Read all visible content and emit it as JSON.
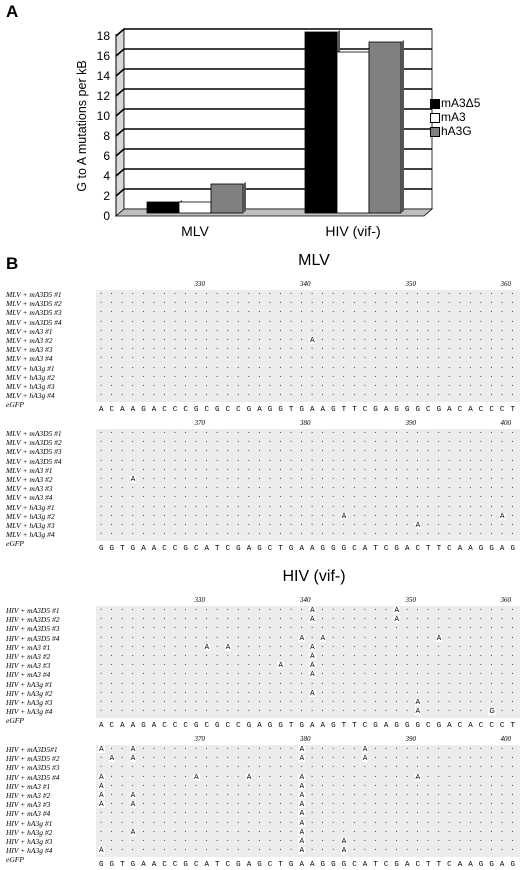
{
  "panel_a": "A",
  "panel_b": "B",
  "chart_data": {
    "type": "bar",
    "ylabel": "G to A mutations per kB",
    "ylim": [
      0,
      18
    ],
    "yticks": [
      0,
      2,
      4,
      6,
      8,
      10,
      12,
      14,
      16,
      18
    ],
    "categories": [
      "MLV",
      "HIV (vif-)"
    ],
    "series": [
      {
        "name": "mA3Δ5",
        "values": [
          1,
          18
        ],
        "color": "#000000"
      },
      {
        "name": "mA3",
        "values": [
          1,
          16
        ],
        "color": "#ffffff"
      },
      {
        "name": "hA3G",
        "values": [
          2.8,
          17
        ],
        "color": "#808080"
      }
    ],
    "grid": true,
    "legend": "right"
  },
  "alignment": {
    "mlv_title": "MLV",
    "hiv_title": "HIV (vif-)",
    "blocks": [
      {
        "ticks": [
          "330",
          "340",
          "350",
          "360"
        ],
        "rows": [
          "MLV + mA3D5 #1",
          "MLV + mA3D5 #2",
          "MLV + mA3D5 #3",
          "MLV + mA3D5 #4",
          "MLV + mA3 #1",
          "MLV + mA3 #2",
          "MLV + mA3 #3",
          "MLV + mA3 #4",
          "MLV + hA3g #1",
          "MLV + hA3g #2",
          "MLV + hA3g #3",
          "MLV + hA3g #4"
        ],
        "ref_label": "eGFP",
        "sequence": "ACAAGACCCGCGCCGAGGTGAAGTTCGAGGGCGACACCCT",
        "mutations": [
          [
            5,
            20,
            "A"
          ]
        ]
      },
      {
        "ticks": [
          "370",
          "380",
          "390",
          "400"
        ],
        "rows": [
          "MLV + mA3D5 #1",
          "MLV + mA3D5 #2",
          "MLV + mA3D5 #3",
          "MLV + mA3D5 #4",
          "MLV + mA3 #1",
          "MLV + mA3 #2",
          "MLV + mA3 #3",
          "MLV + mA3 #4",
          "MLV + hA3g #1",
          "MLV + hA3g #2",
          "MLV + hA3g #3",
          "MLV + hA3g #4"
        ],
        "ref_label": "eGFP",
        "sequence": "GGTGAACCGCATCGAGCTGAAGGGCATCGACTTCAAGGAG",
        "mutations": [
          [
            5,
            3,
            "A"
          ],
          [
            9,
            23,
            "A"
          ],
          [
            9,
            38,
            "A"
          ],
          [
            10,
            30,
            "A"
          ]
        ]
      },
      {
        "ticks": [
          "330",
          "340",
          "350",
          "360"
        ],
        "rows": [
          "HIV + mA3D5 #1",
          "HIV + mA3D5 #2",
          "HIV + mA3D5 #3",
          "HIV + mA3D5 #4",
          "HIV + mA3 #1",
          "HIV + mA3 #2",
          "HIV + mA3 #3",
          "HIV + mA3 #4",
          "HIV + hA3g #1",
          "HIV + hA3g #2",
          "HIV + hA3g #3",
          "HIV + hA3g #4"
        ],
        "ref_label": "eGFP",
        "sequence": "ACAAGACCCGCGCCGAGGTGAAGTTCGAGGGCGACACCCT",
        "mutations": [
          [
            0,
            20,
            "A"
          ],
          [
            0,
            28,
            "A"
          ],
          [
            1,
            20,
            "A"
          ],
          [
            1,
            28,
            "A"
          ],
          [
            3,
            19,
            "A"
          ],
          [
            3,
            21,
            "A"
          ],
          [
            3,
            32,
            "A"
          ],
          [
            4,
            10,
            "A"
          ],
          [
            4,
            12,
            "A"
          ],
          [
            4,
            20,
            "A"
          ],
          [
            5,
            20,
            "A"
          ],
          [
            6,
            17,
            "A"
          ],
          [
            6,
            20,
            "A"
          ],
          [
            7,
            20,
            "A"
          ],
          [
            9,
            20,
            "A"
          ],
          [
            10,
            30,
            "A"
          ],
          [
            11,
            30,
            "A"
          ],
          [
            11,
            37,
            "G"
          ]
        ]
      },
      {
        "ticks": [
          "370",
          "380",
          "390",
          "400"
        ],
        "rows": [
          "HIV + mA3D5#1",
          "HIV + mA3D5 #2",
          "HIV + mA3D5 #3",
          "HIV + mA3D5 #4",
          "HIV + mA3 #1",
          "HIV + mA3 #2",
          "HIV + mA3 #3",
          "HIV + mA3 #4",
          "HIV + hA3g #1",
          "HIV + hA3g #2",
          "HIV + hA3g #3",
          "HIV + hA3g #4"
        ],
        "ref_label": "eGFP",
        "sequence": "GGTGAACCGCATCGAGCTGAAGGGCATCGACTTCAAGGAG",
        "mutations": [
          [
            0,
            0,
            "A"
          ],
          [
            0,
            3,
            "A"
          ],
          [
            0,
            19,
            "A"
          ],
          [
            0,
            25,
            "A"
          ],
          [
            1,
            1,
            "A"
          ],
          [
            1,
            3,
            "A"
          ],
          [
            1,
            19,
            "A"
          ],
          [
            1,
            25,
            "A"
          ],
          [
            3,
            0,
            "A"
          ],
          [
            3,
            9,
            "A"
          ],
          [
            3,
            14,
            "A"
          ],
          [
            3,
            19,
            "A"
          ],
          [
            3,
            30,
            "A"
          ],
          [
            4,
            0,
            "A"
          ],
          [
            4,
            19,
            "A"
          ],
          [
            5,
            0,
            "A"
          ],
          [
            5,
            3,
            "A"
          ],
          [
            5,
            19,
            "A"
          ],
          [
            6,
            0,
            "A"
          ],
          [
            6,
            3,
            "A"
          ],
          [
            6,
            19,
            "A"
          ],
          [
            7,
            19,
            "A"
          ],
          [
            8,
            19,
            "A"
          ],
          [
            9,
            3,
            "A"
          ],
          [
            9,
            19,
            "A"
          ],
          [
            10,
            19,
            "A"
          ],
          [
            10,
            23,
            "A"
          ],
          [
            11,
            0,
            "A"
          ],
          [
            11,
            19,
            "A"
          ],
          [
            11,
            23,
            "A"
          ]
        ]
      }
    ]
  }
}
